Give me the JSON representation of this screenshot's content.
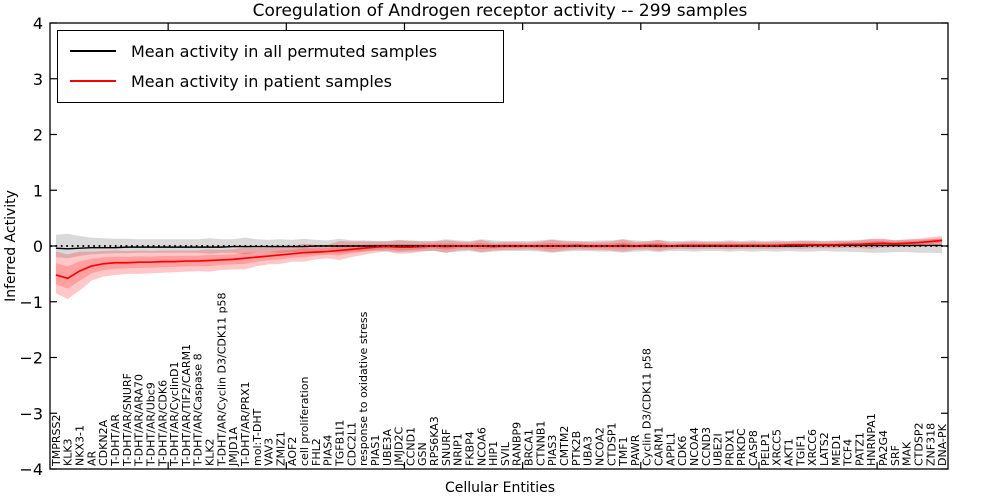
{
  "chart_data": {
    "type": "line",
    "title": "Coregulation of Androgen receptor activity -- 299 samples",
    "xlabel": "Cellular Entities",
    "ylabel": "Inferred Activity",
    "ylim": [
      -4,
      4
    ],
    "yticks": [
      4,
      3,
      2,
      1,
      0,
      -1,
      -2,
      -3,
      -4
    ],
    "ytick_labels": [
      "4",
      "3",
      "2",
      "1",
      "0",
      "−1",
      "−2",
      "−3",
      "−4"
    ],
    "x_axis_range": [
      0,
      76
    ],
    "xticks_unlabeled": [
      10,
      20,
      30,
      40,
      50,
      60,
      70
    ],
    "grid": false,
    "zero_line": {
      "value": 0,
      "style": "dotted",
      "color": "#000000"
    },
    "legend": {
      "position": "upper-left",
      "entries": [
        {
          "label": "Mean activity in all permuted samples",
          "color": "#000000"
        },
        {
          "label": "Mean activity in patient samples",
          "color": "#ff0000"
        }
      ]
    },
    "categories": [
      "TMPRSS2",
      "KLK3",
      "NKX3-1",
      "AR",
      "CDKN2A",
      "T-DHT/AR",
      "T-DHT/AR/SNURF",
      "T-DHT/AR/ARA70",
      "T-DHT/AR/Ubc9",
      "T-DHT/AR/CDK6",
      "T-DHT/AR/CyclinD1",
      "T-DHT/AR/TIF2/CARM1",
      "T-DHT/AR/Caspase 8",
      "KLK2",
      "T-DHT/AR/Cyclin D3/CDK11 p58",
      "JMJD1A",
      "T-DHT/AR/PRX1",
      "mol:T-DHT",
      "VAV3",
      "ZMIZ1",
      "AOF2",
      "cell proliferation",
      "FHL2",
      "PIAS4",
      "TGFB1I1",
      "CDC2L1",
      "response to oxidative stress",
      "PIAS1",
      "UBE3A",
      "JMJD2C",
      "CCND1",
      "GSN",
      "RPS6KA3",
      "SNURF",
      "NRIP1",
      "FKBP4",
      "NCOA6",
      "HIP1",
      "SVIL",
      "RANBP9",
      "BRCA1",
      "CTNNB1",
      "PIAS3",
      "CMTM2",
      "PTK2B",
      "UBA3",
      "NCOA2",
      "CTDSP1",
      "TMF1",
      "PAWR",
      "Cyclin D3/CDK11 p58",
      "CARM1",
      "APPL1",
      "CDK6",
      "NCOA4",
      "CCND3",
      "UBE2I",
      "PRDX1",
      "PRKDC",
      "CASP8",
      "PELP1",
      "XRCC5",
      "AKT1",
      "TGIF1",
      "XRCC6",
      "LATS2",
      "MED1",
      "TCF4",
      "PATZ1",
      "HNRNPA1",
      "PA2G4",
      "SRF",
      "MAK",
      "CTDSP2",
      "ZNF318",
      "DNA-PK"
    ],
    "series": [
      {
        "name": "Mean activity in all permuted samples",
        "color": "#000000",
        "values": [
          -0.04,
          -0.05,
          -0.04,
          -0.03,
          -0.03,
          -0.03,
          -0.02,
          -0.02,
          -0.02,
          -0.02,
          -0.02,
          -0.02,
          -0.02,
          -0.02,
          -0.02,
          -0.01,
          -0.01,
          -0.01,
          -0.01,
          -0.01,
          -0.01,
          -0.01,
          0.0,
          0.0,
          0.0,
          0.0,
          0.0,
          0.0,
          0.0,
          0.0,
          0.0,
          0.0,
          0.0,
          0.0,
          0.0,
          0.0,
          0.0,
          0.0,
          0.0,
          0.0,
          0.0,
          0.0,
          0.0,
          0.0,
          0.0,
          0.0,
          0.0,
          0.0,
          0.0,
          0.0,
          0.0,
          0.0,
          0.0,
          0.0,
          0.0,
          0.0,
          0.0,
          0.0,
          0.0,
          0.0,
          0.0,
          0.0,
          0.0,
          0.0,
          0.01,
          0.01,
          0.01,
          0.01,
          0.01,
          0.01,
          0.01,
          0.01,
          0.01,
          0.01,
          0.01,
          0.01
        ]
      },
      {
        "name": "Mean activity in patient samples",
        "color": "#ff0000",
        "values": [
          -0.52,
          -0.58,
          -0.45,
          -0.36,
          -0.32,
          -0.3,
          -0.3,
          -0.29,
          -0.29,
          -0.28,
          -0.28,
          -0.27,
          -0.27,
          -0.26,
          -0.25,
          -0.24,
          -0.22,
          -0.2,
          -0.18,
          -0.16,
          -0.14,
          -0.12,
          -0.11,
          -0.1,
          -0.08,
          -0.06,
          -0.04,
          -0.02,
          -0.01,
          -0.02,
          -0.02,
          -0.01,
          0.0,
          -0.01,
          0.0,
          0.0,
          0.0,
          -0.01,
          0.0,
          0.0,
          0.0,
          0.0,
          0.0,
          0.0,
          0.01,
          0.0,
          0.0,
          0.0,
          0.01,
          0.0,
          0.01,
          0.01,
          0.0,
          0.01,
          0.01,
          0.01,
          0.01,
          0.01,
          0.01,
          0.01,
          0.01,
          0.01,
          0.02,
          0.02,
          0.02,
          0.02,
          0.02,
          0.03,
          0.03,
          0.04,
          0.05,
          0.04,
          0.05,
          0.06,
          0.08,
          0.1
        ]
      }
    ],
    "bands": [
      {
        "name": "permuted samples spread",
        "color": "#000000",
        "opacity": 0.15,
        "half_width": [
          0.2,
          0.22,
          0.18,
          0.15,
          0.14,
          0.13,
          0.13,
          0.12,
          0.12,
          0.12,
          0.12,
          0.12,
          0.12,
          0.14,
          0.12,
          0.12,
          0.15,
          0.12,
          0.11,
          0.12,
          0.11,
          0.13,
          0.11,
          0.1,
          0.13,
          0.1,
          0.1,
          0.09,
          0.09,
          0.11,
          0.1,
          0.09,
          0.09,
          0.12,
          0.1,
          0.09,
          0.12,
          0.1,
          0.09,
          0.09,
          0.09,
          0.1,
          0.12,
          0.1,
          0.09,
          0.09,
          0.1,
          0.1,
          0.12,
          0.1,
          0.09,
          0.11,
          0.09,
          0.09,
          0.1,
          0.09,
          0.09,
          0.1,
          0.09,
          0.1,
          0.09,
          0.1,
          0.09,
          0.1,
          0.1,
          0.09,
          0.1,
          0.1,
          0.11,
          0.12,
          0.12,
          0.11,
          0.11,
          0.12,
          0.12,
          0.13
        ]
      },
      {
        "name": "patient samples spread",
        "color": "#ff0000",
        "opacity": 0.22,
        "lower": [
          -0.85,
          -0.95,
          -0.8,
          -0.62,
          -0.55,
          -0.52,
          -0.5,
          -0.5,
          -0.49,
          -0.48,
          -0.47,
          -0.46,
          -0.45,
          -0.46,
          -0.43,
          -0.42,
          -0.42,
          -0.36,
          -0.33,
          -0.32,
          -0.28,
          -0.28,
          -0.24,
          -0.22,
          -0.25,
          -0.2,
          -0.16,
          -0.12,
          -0.1,
          -0.14,
          -0.13,
          -0.1,
          -0.08,
          -0.12,
          -0.08,
          -0.07,
          -0.11,
          -0.08,
          -0.07,
          -0.07,
          -0.06,
          -0.08,
          -0.11,
          -0.08,
          -0.06,
          -0.07,
          -0.07,
          -0.08,
          -0.1,
          -0.07,
          -0.06,
          -0.09,
          -0.06,
          -0.05,
          -0.06,
          -0.05,
          -0.05,
          -0.06,
          -0.05,
          -0.05,
          -0.05,
          -0.05,
          -0.04,
          -0.05,
          -0.04,
          -0.04,
          -0.04,
          -0.03,
          -0.04,
          -0.05,
          -0.03,
          -0.02,
          -0.02,
          -0.01,
          0.0,
          0.02
        ],
        "upper": [
          -0.1,
          -0.15,
          -0.1,
          -0.1,
          -0.09,
          -0.08,
          -0.09,
          -0.08,
          -0.09,
          -0.08,
          -0.08,
          -0.08,
          -0.08,
          -0.06,
          -0.07,
          -0.06,
          -0.02,
          -0.04,
          -0.03,
          0.0,
          0.0,
          0.04,
          0.02,
          0.02,
          0.09,
          0.08,
          0.08,
          0.08,
          0.08,
          0.1,
          0.09,
          0.08,
          0.08,
          0.1,
          0.08,
          0.07,
          0.11,
          0.06,
          0.07,
          0.07,
          0.06,
          0.08,
          0.11,
          0.08,
          0.08,
          0.07,
          0.07,
          0.08,
          0.12,
          0.07,
          0.08,
          0.11,
          0.06,
          0.07,
          0.08,
          0.07,
          0.07,
          0.08,
          0.07,
          0.08,
          0.07,
          0.08,
          0.08,
          0.09,
          0.09,
          0.08,
          0.09,
          0.09,
          0.1,
          0.13,
          0.13,
          0.1,
          0.12,
          0.13,
          0.16,
          0.18
        ]
      }
    ]
  }
}
